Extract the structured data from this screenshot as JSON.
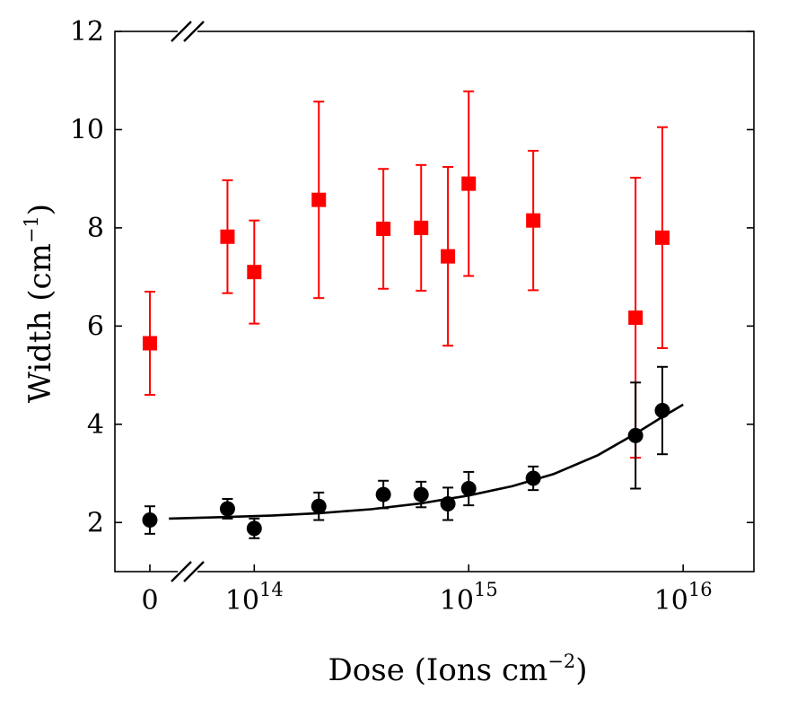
{
  "chart_data": {
    "type": "scatter",
    "xlabel": "Dose (Ions cm",
    "xlabel_sup": "−2",
    "xlabel_close": ")",
    "ylabel": "Width (cm",
    "ylabel_sup": "−1",
    "ylabel_close": ")",
    "ylim": [
      1,
      12
    ],
    "xlim_log": [
      13.35,
      16.33
    ],
    "x_scale": "log10 with axis break near zero",
    "y_ticks": [
      "2",
      "4",
      "6",
      "8",
      "10",
      "12"
    ],
    "x_ticks": [
      {
        "base": "0",
        "exp": ""
      },
      {
        "base": "10",
        "exp": "14"
      },
      {
        "base": "10",
        "exp": "15"
      },
      {
        "base": "10",
        "exp": "16"
      }
    ],
    "series": [
      {
        "name": "red squares",
        "color": "#ff0000",
        "marker": "square",
        "points": [
          {
            "x": 0,
            "y": 5.65,
            "err": 1.05
          },
          {
            "x": 75000000000000.0,
            "y": 7.82,
            "err": 1.15
          },
          {
            "x": 100000000000000.0,
            "y": 7.1,
            "err": 1.05
          },
          {
            "x": 200000000000000.0,
            "y": 8.57,
            "err": 2.0
          },
          {
            "x": 400000000000000.0,
            "y": 7.98,
            "err": 1.22
          },
          {
            "x": 600000000000000.0,
            "y": 8.0,
            "err": 1.28
          },
          {
            "x": 800000000000000.0,
            "y": 7.42,
            "err": 1.82
          },
          {
            "x": 1000000000000000.0,
            "y": 8.9,
            "err": 1.88
          },
          {
            "x": 2000000000000000.0,
            "y": 8.15,
            "err": 1.42
          },
          {
            "x": 6000000000000000.0,
            "y": 6.17,
            "err": 2.85
          },
          {
            "x": 8000000000000000.0,
            "y": 7.8,
            "err": 2.25
          }
        ]
      },
      {
        "name": "black circles",
        "color": "#000000",
        "marker": "circle",
        "points": [
          {
            "x": 0,
            "y": 2.05,
            "err": 0.28
          },
          {
            "x": 75000000000000.0,
            "y": 2.28,
            "err": 0.2
          },
          {
            "x": 100000000000000.0,
            "y": 1.88,
            "err": 0.2
          },
          {
            "x": 200000000000000.0,
            "y": 2.33,
            "err": 0.28
          },
          {
            "x": 400000000000000.0,
            "y": 2.57,
            "err": 0.28
          },
          {
            "x": 600000000000000.0,
            "y": 2.57,
            "err": 0.26
          },
          {
            "x": 800000000000000.0,
            "y": 2.38,
            "err": 0.33
          },
          {
            "x": 1000000000000000.0,
            "y": 2.69,
            "err": 0.34
          },
          {
            "x": 2000000000000000.0,
            "y": 2.9,
            "err": 0.24
          },
          {
            "x": 6000000000000000.0,
            "y": 3.77,
            "err": 1.08
          },
          {
            "x": 8000000000000000.0,
            "y": 4.28,
            "err": 0.89
          }
        ]
      }
    ],
    "fit_line": {
      "name": "fit",
      "color": "#000000",
      "points": [
        {
          "x": 40000000000000.0,
          "y": 2.08
        },
        {
          "x": 70000000000000.0,
          "y": 2.11
        },
        {
          "x": 120000000000000.0,
          "y": 2.14
        },
        {
          "x": 200000000000000.0,
          "y": 2.19
        },
        {
          "x": 350000000000000.0,
          "y": 2.27
        },
        {
          "x": 600000000000000.0,
          "y": 2.39
        },
        {
          "x": 1000000000000000.0,
          "y": 2.55
        },
        {
          "x": 1600000000000000.0,
          "y": 2.74
        },
        {
          "x": 2500000000000000.0,
          "y": 2.99
        },
        {
          "x": 4000000000000000.0,
          "y": 3.37
        },
        {
          "x": 6000000000000000.0,
          "y": 3.81
        },
        {
          "x": 8000000000000000.0,
          "y": 4.15
        },
        {
          "x": 1e+16,
          "y": 4.4
        }
      ]
    }
  }
}
